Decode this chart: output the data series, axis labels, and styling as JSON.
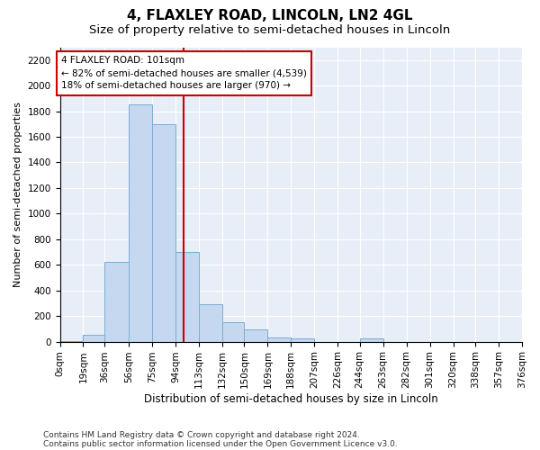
{
  "title1": "4, FLAXLEY ROAD, LINCOLN, LN2 4GL",
  "title2": "Size of property relative to semi-detached houses in Lincoln",
  "xlabel": "Distribution of semi-detached houses by size in Lincoln",
  "ylabel": "Number of semi-detached properties",
  "footnote1": "Contains HM Land Registry data © Crown copyright and database right 2024.",
  "footnote2": "Contains public sector information licensed under the Open Government Licence v3.0.",
  "annotation_title": "4 FLAXLEY ROAD: 101sqm",
  "annotation_line1": "← 82% of semi-detached houses are smaller (4,539)",
  "annotation_line2": "18% of semi-detached houses are larger (970) →",
  "property_size": 101,
  "bin_edges": [
    0,
    19,
    36,
    56,
    75,
    94,
    113,
    132,
    150,
    169,
    188,
    207,
    226,
    244,
    263,
    282,
    301,
    320,
    338,
    357,
    376
  ],
  "bin_labels": [
    "0sqm",
    "19sqm",
    "36sqm",
    "56sqm",
    "75sqm",
    "94sqm",
    "113sqm",
    "132sqm",
    "150sqm",
    "169sqm",
    "188sqm",
    "207sqm",
    "226sqm",
    "244sqm",
    "263sqm",
    "282sqm",
    "301sqm",
    "320sqm",
    "338sqm",
    "357sqm",
    "376sqm"
  ],
  "bar_heights": [
    5,
    50,
    620,
    1850,
    1700,
    700,
    290,
    155,
    95,
    35,
    25,
    0,
    0,
    25,
    0,
    0,
    0,
    0,
    0,
    0
  ],
  "bar_color": "#c5d8f0",
  "bar_edge_color": "#7aadd4",
  "vline_color": "#cc0000",
  "vline_x": 101,
  "ylim": [
    0,
    2300
  ],
  "yticks": [
    0,
    200,
    400,
    600,
    800,
    1000,
    1200,
    1400,
    1600,
    1800,
    2000,
    2200
  ],
  "background_color": "#ffffff",
  "plot_bg_color": "#e8eef7",
  "annotation_box_color": "#ffffff",
  "annotation_box_edge": "#cc0000",
  "title1_fontsize": 11,
  "title2_fontsize": 9.5,
  "xlabel_fontsize": 8.5,
  "ylabel_fontsize": 8,
  "annotation_fontsize": 7.5,
  "footnote_fontsize": 6.5,
  "tick_fontsize": 7.5
}
